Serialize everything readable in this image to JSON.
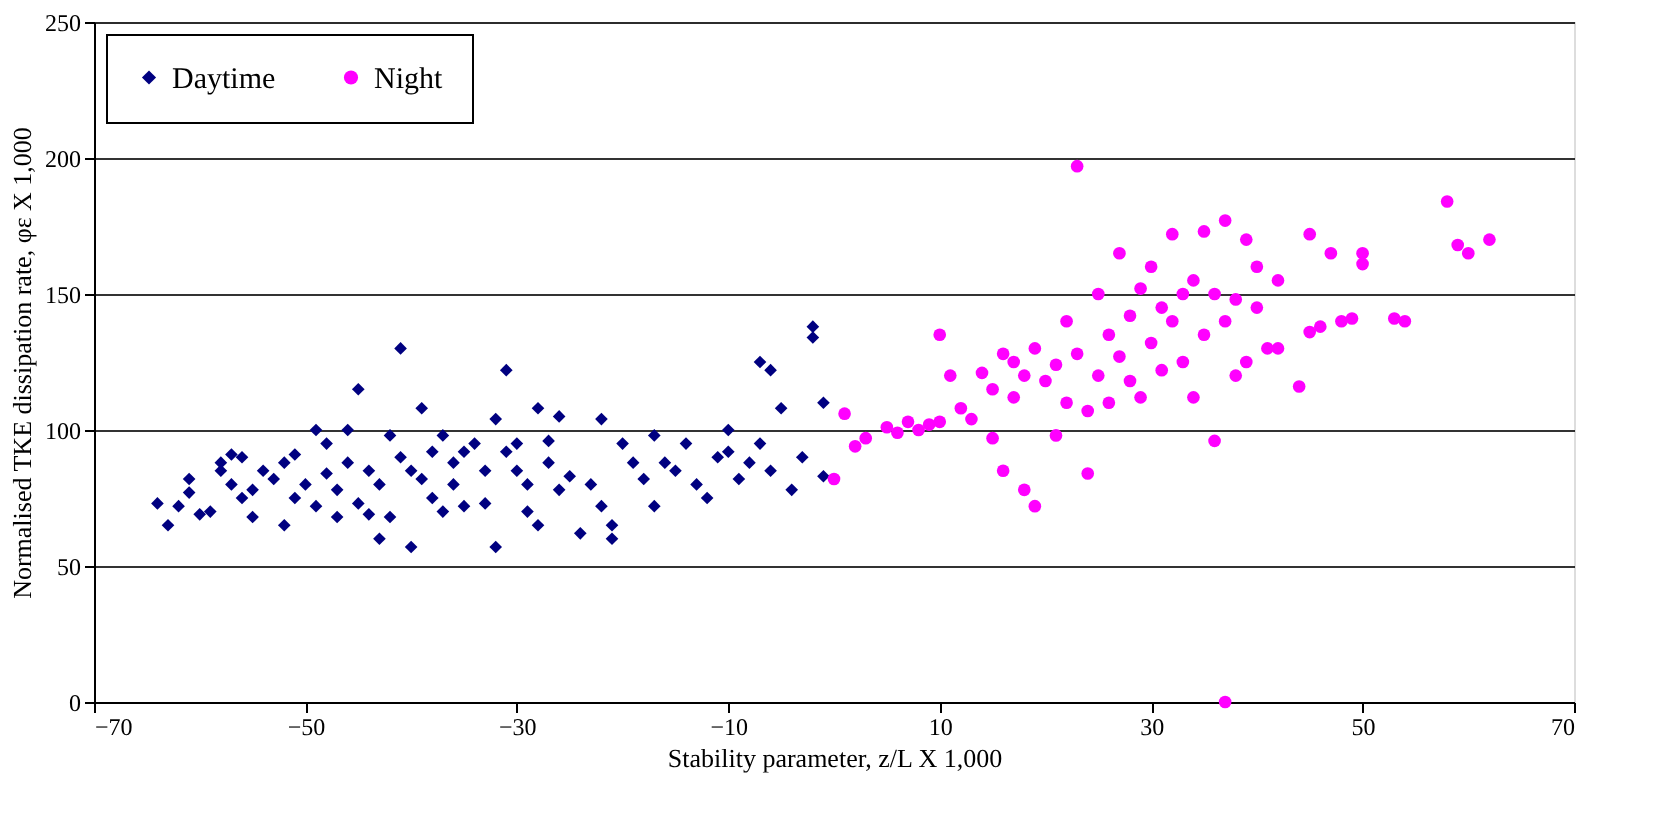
{
  "chart_data": {
    "type": "scatter",
    "xlabel": "Stability parameter, z/L X 1,000",
    "ylabel": "Normalised TKE dissipation rate, φε X 1,000",
    "xlim": [
      -70,
      70
    ],
    "xticks": [
      -70,
      -50,
      -30,
      -10,
      10,
      30,
      50,
      70
    ],
    "ylim": [
      0,
      250
    ],
    "yticks": [
      0,
      50,
      100,
      150,
      200,
      250
    ],
    "grid": "y",
    "legend": "top left",
    "series": [
      {
        "name": "Daytime",
        "color": "#000080",
        "marker": "diamond",
        "x": [
          -64,
          -63,
          -62,
          -61,
          -61,
          -60,
          -59,
          -58,
          -58,
          -57,
          -57,
          -56,
          -56,
          -55,
          -55,
          -54,
          -53,
          -52,
          -52,
          -51,
          -51,
          -50,
          -49,
          -49,
          -48,
          -48,
          -47,
          -47,
          -46,
          -46,
          -45,
          -45,
          -44,
          -44,
          -43,
          -43,
          -42,
          -42,
          -41,
          -41,
          -40,
          -40,
          -39,
          -39,
          -38,
          -38,
          -37,
          -37,
          -36,
          -36,
          -35,
          -35,
          -34,
          -33,
          -33,
          -32,
          -32,
          -31,
          -31,
          -30,
          -30,
          -29,
          -29,
          -28,
          -28,
          -27,
          -27,
          -26,
          -26,
          -25,
          -24,
          -23,
          -22,
          -22,
          -21,
          -21,
          -20,
          -19,
          -18,
          -17,
          -17,
          -16,
          -15,
          -14,
          -13,
          -12,
          -11,
          -10,
          -10,
          -9,
          -8,
          -7,
          -7,
          -6,
          -6,
          -5,
          -4,
          -3,
          -2,
          -2,
          -1,
          -1
        ],
        "values": [
          73,
          65,
          72,
          77,
          82,
          69,
          70,
          85,
          88,
          91,
          80,
          75,
          90,
          68,
          78,
          85,
          82,
          65,
          88,
          75,
          91,
          80,
          100,
          72,
          84,
          95,
          78,
          68,
          88,
          100,
          115,
          73,
          69,
          85,
          80,
          60,
          98,
          68,
          130,
          90,
          85,
          57,
          108,
          82,
          92,
          75,
          98,
          70,
          88,
          80,
          92,
          72,
          95,
          73,
          85,
          104,
          57,
          122,
          92,
          85,
          95,
          70,
          80,
          108,
          65,
          96,
          88,
          105,
          78,
          83,
          62,
          80,
          104,
          72,
          65,
          60,
          95,
          88,
          82,
          98,
          72,
          88,
          85,
          95,
          80,
          75,
          90,
          92,
          100,
          82,
          88,
          125,
          95,
          122,
          85,
          108,
          78,
          90,
          138,
          134,
          110,
          83
        ]
      },
      {
        "name": "Night",
        "color": "#ff00ff",
        "marker": "circle",
        "x": [
          0,
          1,
          2,
          3,
          5,
          6,
          7,
          8,
          9,
          10,
          10,
          11,
          12,
          13,
          14,
          15,
          15,
          16,
          16,
          17,
          17,
          18,
          18,
          19,
          19,
          20,
          21,
          21,
          22,
          22,
          23,
          23,
          24,
          24,
          25,
          25,
          26,
          26,
          27,
          27,
          28,
          28,
          29,
          29,
          30,
          30,
          31,
          31,
          32,
          32,
          33,
          33,
          34,
          34,
          35,
          35,
          36,
          36,
          37,
          37,
          37,
          38,
          38,
          39,
          39,
          40,
          40,
          41,
          42,
          42,
          44,
          45,
          45,
          46,
          47,
          48,
          49,
          50,
          50,
          53,
          54,
          58,
          59,
          60,
          62
        ],
        "values": [
          82,
          106,
          94,
          97,
          101,
          99,
          103,
          100,
          102,
          103,
          135,
          120,
          108,
          104,
          121,
          115,
          97,
          128,
          85,
          112,
          125,
          78,
          120,
          72,
          130,
          118,
          124,
          98,
          140,
          110,
          197,
          128,
          84,
          107,
          150,
          120,
          110,
          135,
          165,
          127,
          142,
          118,
          152,
          112,
          160,
          132,
          145,
          122,
          172,
          140,
          150,
          125,
          155,
          112,
          173,
          135,
          96,
          150,
          0,
          177,
          140,
          148,
          120,
          170,
          125,
          160,
          145,
          130,
          155,
          130,
          116,
          136,
          172,
          138,
          165,
          140,
          141,
          165,
          161,
          141,
          140,
          184,
          168,
          165,
          170
        ]
      }
    ]
  }
}
